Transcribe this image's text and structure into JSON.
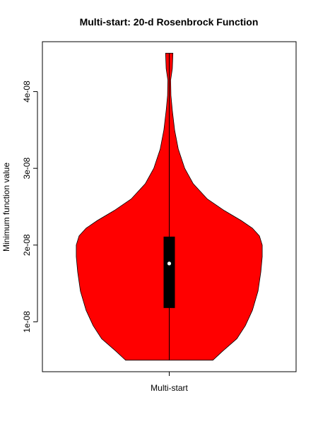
{
  "chart_data": {
    "type": "violin",
    "title": "Multi-start: 20-d Rosenbrock Function",
    "xlabel": "",
    "ylabel": "Minimum function value",
    "categories": [
      "Multi-start"
    ],
    "yticks": [
      {
        "value": 1e-08,
        "label": "1e-08"
      },
      {
        "value": 2e-08,
        "label": "2e-08"
      },
      {
        "value": 3e-08,
        "label": "3e-08"
      },
      {
        "value": 4e-08,
        "label": "4e-08"
      }
    ],
    "ylim": [
      3.5e-09,
      4.65e-08
    ],
    "xlim": [
      0.55,
      1.45
    ],
    "colors": {
      "violin": "#ff0000",
      "box": "#000000",
      "median": "#ffffff"
    },
    "series": [
      {
        "min": 5e-09,
        "max": 4.5e-08,
        "q1": 1.18e-08,
        "median": 1.76e-08,
        "q3": 2.11e-08,
        "density": [
          {
            "y": 5e-09,
            "w": 0.155
          },
          {
            "y": 6.2e-09,
            "w": 0.19
          },
          {
            "y": 7.8e-09,
            "w": 0.24
          },
          {
            "y": 9.5e-09,
            "w": 0.27
          },
          {
            "y": 1.15e-08,
            "w": 0.295
          },
          {
            "y": 1.4e-08,
            "w": 0.315
          },
          {
            "y": 1.65e-08,
            "w": 0.325
          },
          {
            "y": 1.85e-08,
            "w": 0.33
          },
          {
            "y": 2e-08,
            "w": 0.33
          },
          {
            "y": 2.12e-08,
            "w": 0.32
          },
          {
            "y": 2.22e-08,
            "w": 0.295
          },
          {
            "y": 2.32e-08,
            "w": 0.255
          },
          {
            "y": 2.45e-08,
            "w": 0.195
          },
          {
            "y": 2.6e-08,
            "w": 0.135
          },
          {
            "y": 2.8e-08,
            "w": 0.085
          },
          {
            "y": 3e-08,
            "w": 0.055
          },
          {
            "y": 3.25e-08,
            "w": 0.032
          },
          {
            "y": 3.5e-08,
            "w": 0.019
          },
          {
            "y": 3.75e-08,
            "w": 0.011
          },
          {
            "y": 3.95e-08,
            "w": 0.006
          },
          {
            "y": 4.15e-08,
            "w": 0.005
          },
          {
            "y": 4.3e-08,
            "w": 0.011
          },
          {
            "y": 4.5e-08,
            "w": 0.013
          }
        ]
      }
    ]
  }
}
